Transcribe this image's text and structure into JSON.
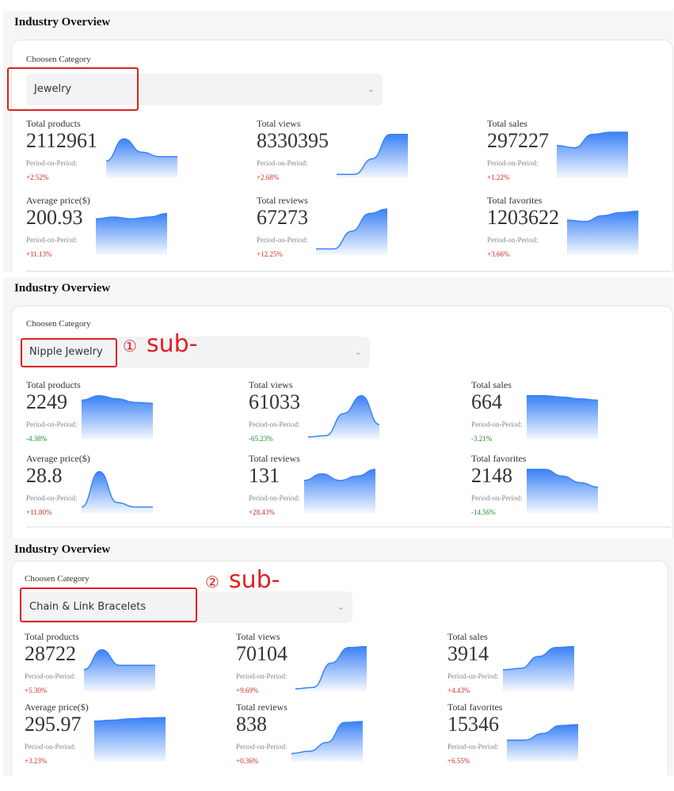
{
  "colors": {
    "accent": "#3b82f6",
    "up": "#d02a2a",
    "down": "#1f8a2a",
    "highlight": "#e02020"
  },
  "panels": [
    {
      "title": "Industry Overview",
      "category_label": "Choosen Category",
      "selected_category": "Jewelry",
      "note_number": "",
      "note_text": "",
      "metrics": [
        {
          "label": "Total products",
          "value": "2112961",
          "pop_label": "Period-on-Period:",
          "change": "+2.52%",
          "trend": "up",
          "spark": [
            0.35,
            0.85,
            0.55,
            0.45,
            0.45
          ]
        },
        {
          "label": "Total views",
          "value": "8330395",
          "pop_label": "Period-on-Period:",
          "change": "+2.68%",
          "trend": "up",
          "spark": [
            0.05,
            0.05,
            0.4,
            0.95,
            0.95
          ]
        },
        {
          "label": "Total sales",
          "value": "297227",
          "pop_label": "Period-on-Period:",
          "change": "+1.22%",
          "trend": "up",
          "spark": [
            0.7,
            0.65,
            0.95,
            1,
            1
          ]
        },
        {
          "label": "Average price($)",
          "value": "200.93",
          "pop_label": "Period-on-Period:",
          "change": "+11.13%",
          "trend": "up",
          "spark": [
            0.78,
            0.82,
            0.78,
            0.82,
            0.9
          ]
        },
        {
          "label": "Total reviews",
          "value": "67273",
          "pop_label": "Period-on-Period:",
          "change": "+12.25%",
          "trend": "up",
          "spark": [
            0.1,
            0.1,
            0.5,
            0.9,
            1
          ]
        },
        {
          "label": "Total favorites",
          "value": "1203622",
          "pop_label": "Period-on-Period:",
          "change": "+3.66%",
          "trend": "up",
          "spark": [
            0.75,
            0.72,
            0.85,
            0.92,
            0.95
          ]
        }
      ]
    },
    {
      "title": "Industry Overview",
      "category_label": "Choosen Category",
      "selected_category": "Nipple Jewelry",
      "note_number": "①",
      "note_text": "sub-",
      "metrics": [
        {
          "label": "Total products",
          "value": "2249",
          "pop_label": "Period-on-Period:",
          "change": "-4.38%",
          "trend": "down",
          "spark": [
            0.85,
            0.95,
            0.88,
            0.8,
            0.78
          ]
        },
        {
          "label": "Total views",
          "value": "61033",
          "pop_label": "Period-on-Period:",
          "change": "-65.23%",
          "trend": "down",
          "spark": [
            0.02,
            0.05,
            0.55,
            0.95,
            0.3
          ]
        },
        {
          "label": "Total sales",
          "value": "664",
          "pop_label": "Period-on-Period:",
          "change": "-3.21%",
          "trend": "down",
          "spark": [
            0.95,
            0.95,
            0.92,
            0.88,
            0.85
          ]
        },
        {
          "label": "Average price($)",
          "value": "28.8",
          "pop_label": "Period-on-Period:",
          "change": "+11.80%",
          "trend": "up",
          "spark": [
            0.1,
            0.9,
            0.2,
            0.1,
            0.1
          ]
        },
        {
          "label": "Total reviews",
          "value": "131",
          "pop_label": "Period-on-Period:",
          "change": "+28.43%",
          "trend": "up",
          "spark": [
            0.7,
            0.85,
            0.7,
            0.8,
            0.95
          ]
        },
        {
          "label": "Total favorites",
          "value": "2148",
          "pop_label": "Period-on-Period:",
          "change": "-14.56%",
          "trend": "down",
          "spark": [
            0.95,
            0.95,
            0.8,
            0.65,
            0.55
          ]
        }
      ]
    },
    {
      "title": "Industry Overview",
      "category_label": "Choosen Category",
      "selected_category": "Chain & Link Bracelets",
      "note_number": "②",
      "note_text": "sub-",
      "metrics": [
        {
          "label": "Total products",
          "value": "28722",
          "pop_label": "Period-on-Period:",
          "change": "+5.30%",
          "trend": "up",
          "spark": [
            0.45,
            0.9,
            0.55,
            0.55,
            0.55
          ]
        },
        {
          "label": "Total views",
          "value": "70104",
          "pop_label": "Period-on-Period:",
          "change": "+9.69%",
          "trend": "up",
          "spark": [
            0.02,
            0.05,
            0.6,
            0.95,
            0.97
          ]
        },
        {
          "label": "Total sales",
          "value": "3914",
          "pop_label": "Period-on-Period:",
          "change": "+4.43%",
          "trend": "up",
          "spark": [
            0.45,
            0.48,
            0.75,
            0.95,
            0.97
          ]
        },
        {
          "label": "Average price($)",
          "value": "295.97",
          "pop_label": "Period-on-Period:",
          "change": "+3.23%",
          "trend": "up",
          "spark": [
            0.88,
            0.9,
            0.93,
            0.95,
            0.96
          ]
        },
        {
          "label": "Total reviews",
          "value": "838",
          "pop_label": "Period-on-Period:",
          "change": "+0.36%",
          "trend": "up",
          "spark": [
            0.15,
            0.2,
            0.4,
            0.85,
            0.87
          ]
        },
        {
          "label": "Total favorites",
          "value": "15346",
          "pop_label": "Period-on-Period:",
          "change": "+6.55%",
          "trend": "up",
          "spark": [
            0.45,
            0.45,
            0.6,
            0.78,
            0.8
          ]
        }
      ]
    }
  ]
}
